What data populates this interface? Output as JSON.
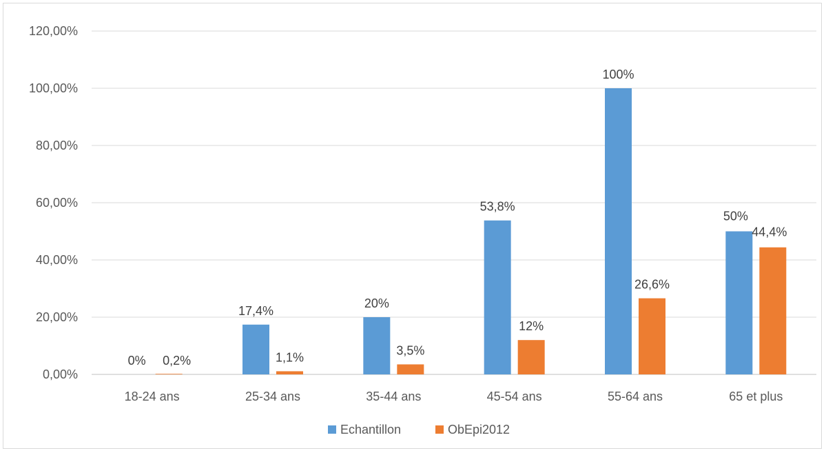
{
  "chart_data": {
    "type": "bar",
    "categories": [
      "18-24 ans",
      "25-34 ans",
      "35-44 ans",
      "45-54 ans",
      "55-64 ans",
      "65 et plus"
    ],
    "series": [
      {
        "name": "Echantillon",
        "color": "#5b9bd5",
        "values": [
          0,
          17.4,
          20,
          53.8,
          100,
          50
        ],
        "labels": [
          "0%",
          "17,4%",
          "20%",
          "53,8%",
          "100%",
          "50%"
        ]
      },
      {
        "name": "ObEpi2012",
        "color": "#ed7d31",
        "values": [
          0.2,
          1.1,
          3.5,
          12,
          26.6,
          44.4
        ],
        "labels": [
          "0,2%",
          "1,1%",
          "3,5%",
          "12%",
          "26,6%",
          "44,4%"
        ]
      }
    ],
    "yticks": [
      "0,00%",
      "20,00%",
      "40,00%",
      "60,00%",
      "80,00%",
      "100,00%",
      "120,00%"
    ],
    "ylim": [
      0,
      120
    ],
    "grid": true,
    "legend_position": "bottom"
  }
}
